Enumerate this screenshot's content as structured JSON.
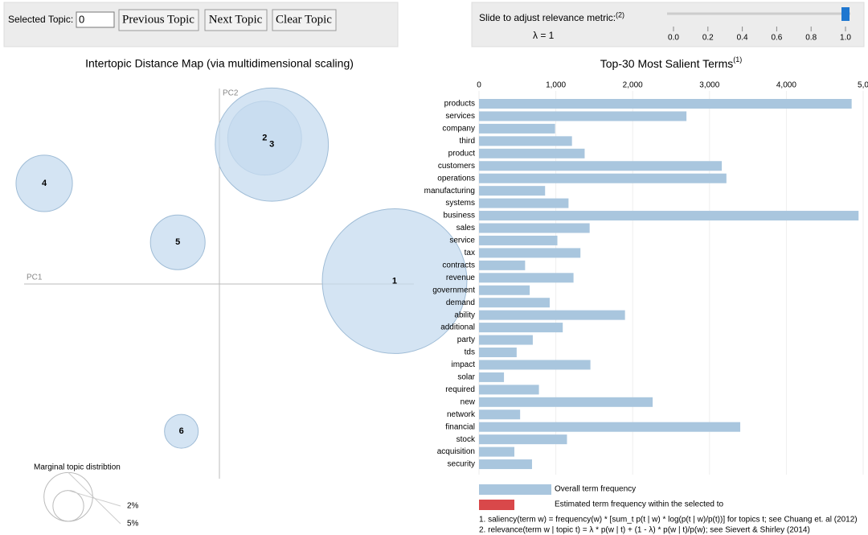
{
  "controls": {
    "selected_topic_label": "Selected Topic:",
    "selected_topic_value": "0",
    "previous": "Previous Topic",
    "next": "Next Topic",
    "clear": "Clear Topic"
  },
  "slider": {
    "label": "Slide to adjust relevance metric:",
    "note": "(2)",
    "lambda_label": "λ = 1",
    "value": 1,
    "xlim": [
      0,
      1
    ],
    "xticks": [
      {
        "value": 0,
        "label": "0.0"
      },
      {
        "value": 0.2,
        "label": "0.2"
      },
      {
        "value": 0.4,
        "label": "0.4"
      },
      {
        "value": 0.6,
        "label": "0.6"
      },
      {
        "value": 0.8,
        "label": "0.8"
      },
      {
        "value": 1,
        "label": "1.0"
      }
    ]
  },
  "chart_data": [
    {
      "type": "bubble",
      "title": "Intertopic Distance Map (via multidimensional scaling)",
      "x_axis_label": "PC1",
      "y_axis_label": "PC2",
      "xlim": [
        -0.3,
        0.3
      ],
      "ylim": [
        -0.29,
        0.29
      ],
      "color": "#c6dbef",
      "labels": [
        "1",
        "2",
        "3",
        "4",
        "5",
        "6"
      ],
      "x": [
        0.244,
        0.063,
        0.073,
        -0.244,
        -0.058,
        -0.053
      ],
      "y": [
        0.004,
        0.203,
        0.194,
        0.14,
        0.058,
        -0.205
      ],
      "sizes": [
        44.1,
        11.5,
        27.0,
        6.7,
        6.3,
        2.4
      ],
      "size_legend": {
        "title": "Marginal topic distribtion",
        "values": [
          2,
          5
        ],
        "value_labels": [
          "2%",
          "5%"
        ]
      }
    },
    {
      "type": "bar",
      "orientation": "horizontal",
      "title": "Top-30 Most Salient Terms",
      "title_note": "(1)",
      "xlim": [
        0,
        5000
      ],
      "xticks": [
        0,
        {
          "value": 1000,
          "label": "1,000"
        },
        {
          "value": 2000,
          "label": "2,000"
        },
        {
          "value": 3000,
          "label": "3,000"
        },
        {
          "value": 4000,
          "label": "4,000"
        },
        {
          "value": 5000,
          "label": "5,0"
        }
      ],
      "categories": [
        "products",
        "services",
        "company",
        "third",
        "product",
        "customers",
        "operations",
        "manufacturing",
        "systems",
        "business",
        "sales",
        "service",
        "tax",
        "contracts",
        "revenue",
        "government",
        "demand",
        "ability",
        "additional",
        "party",
        "tds",
        "impact",
        "solar",
        "required",
        "new",
        "network",
        "financial",
        "stock",
        "acquisition",
        "security"
      ],
      "series": [
        {
          "name": "Overall term frequency",
          "color": "#a9c6de",
          "values": [
            4850,
            2700,
            990,
            1210,
            1375,
            3160,
            3220,
            860,
            1165,
            4940,
            1440,
            1020,
            1320,
            600,
            1230,
            660,
            920,
            1900,
            1090,
            700,
            490,
            1450,
            325,
            780,
            2260,
            535,
            3400,
            1145,
            460,
            690
          ]
        }
      ],
      "legend": [
        {
          "name": "Overall term frequency",
          "color": "#a9c6de"
        },
        {
          "name": "Estimated term frequency within the selected to",
          "color": "#d9484a"
        }
      ]
    }
  ],
  "footnotes": [
    "1. saliency(term w) = frequency(w) * [sum_t p(t | w) * log(p(t | w)/p(t))] for topics t; see Chuang et. al (2012)",
    "2. relevance(term w | topic t) = λ * p(w | t) + (1 - λ) * p(w | t)/p(w); see Sievert & Shirley (2014)"
  ]
}
